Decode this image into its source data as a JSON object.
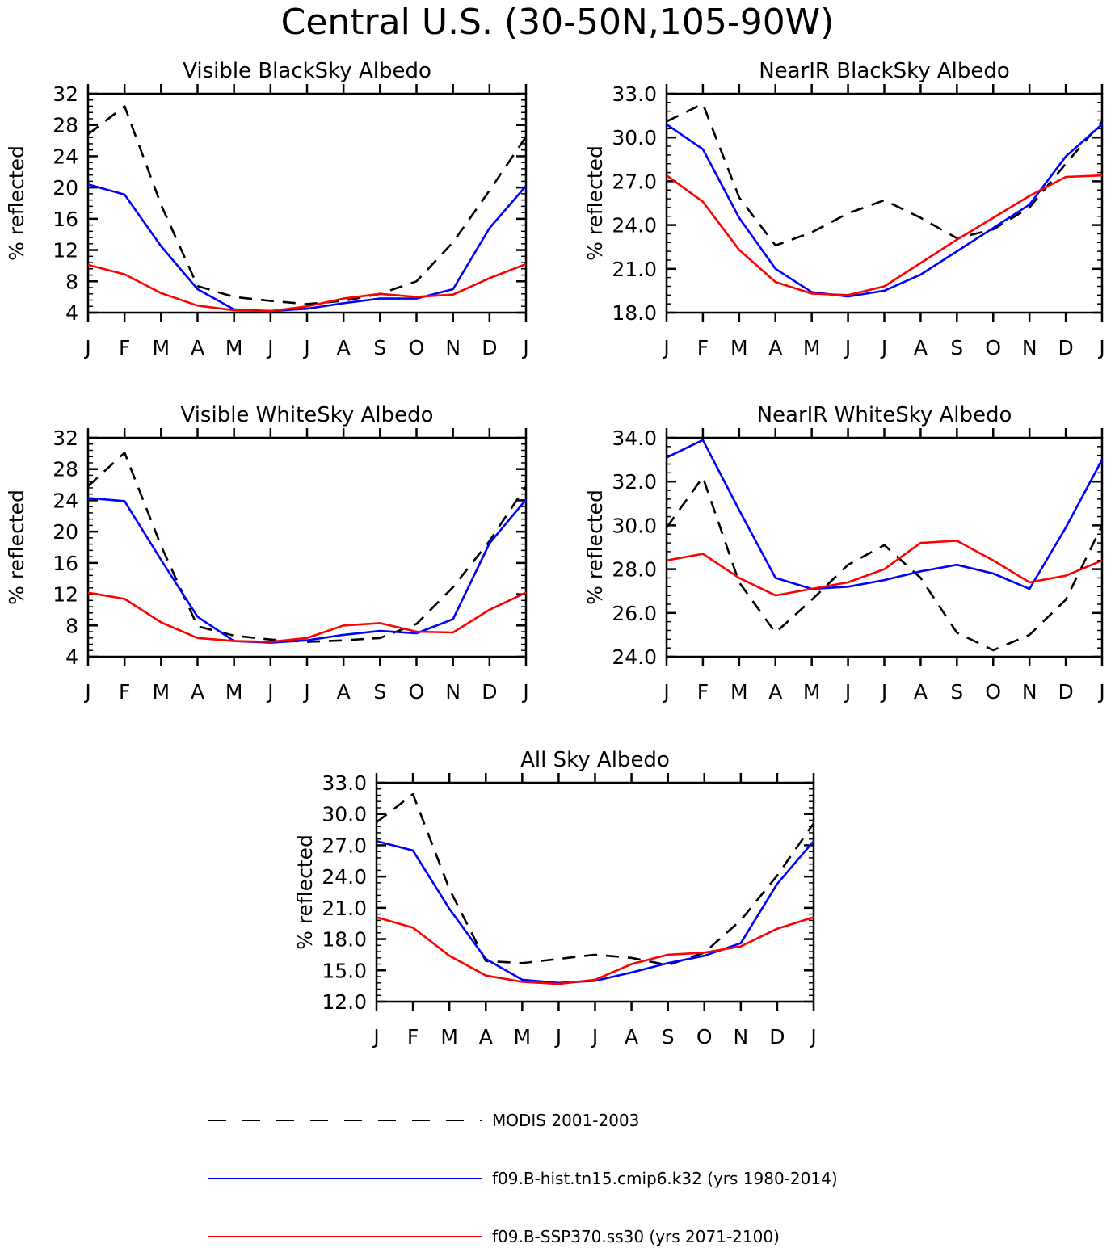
{
  "figure_title": "Central U.S. (30-50N,105-90W)",
  "colors": {
    "modis": "#000000",
    "hist": "#0000ff",
    "ssp": "#ff0000"
  },
  "legend": [
    {
      "label": "MODIS 2001-2003",
      "color": "#000000",
      "dash": true
    },
    {
      "label": "f09.B-hist.tn15.cmip6.k32 (yrs 1980-2014)",
      "color": "#0000ff",
      "dash": false
    },
    {
      "label": "f09.B-SSP370.ss30 (yrs 2071-2100)",
      "color": "#ff0000",
      "dash": false
    }
  ],
  "chart_data": [
    {
      "type": "line",
      "title": "Visible BlackSky Albedo",
      "ylabel": "% reflected",
      "categories": [
        "J",
        "F",
        "M",
        "A",
        "M",
        "J",
        "J",
        "A",
        "S",
        "O",
        "N",
        "D",
        "J"
      ],
      "ylim": [
        4,
        32
      ],
      "yticks": [
        "4",
        "8",
        "12",
        "16",
        "20",
        "24",
        "28",
        "32"
      ],
      "series": [
        {
          "name": "MODIS 2001-2003",
          "values": [
            26.8,
            30.4,
            17.8,
            7.4,
            6.0,
            5.5,
            5.1,
            5.5,
            6.4,
            8.0,
            13.0,
            19.6,
            26.5
          ]
        },
        {
          "name": "f09.B-hist.tn15.cmip6.k32 (yrs 1980-2014)",
          "values": [
            20.4,
            19.1,
            12.5,
            7.0,
            4.4,
            4.2,
            4.5,
            5.2,
            5.8,
            5.8,
            7.0,
            14.8,
            20.2
          ]
        },
        {
          "name": "f09.B-SSP370.ss30 (yrs 2071-2100)",
          "values": [
            10.1,
            8.9,
            6.5,
            4.9,
            4.3,
            4.2,
            4.8,
            5.8,
            6.4,
            6.0,
            6.3,
            8.4,
            10.2
          ]
        }
      ]
    },
    {
      "type": "line",
      "title": "NearIR BlackSky Albedo",
      "ylabel": "% reflected",
      "categories": [
        "J",
        "F",
        "M",
        "A",
        "M",
        "J",
        "J",
        "A",
        "S",
        "O",
        "N",
        "D",
        "J"
      ],
      "ylim": [
        18,
        33
      ],
      "yticks": [
        "18.0",
        "21.0",
        "24.0",
        "27.0",
        "30.0",
        "33.0"
      ],
      "series": [
        {
          "name": "MODIS 2001-2003",
          "values": [
            31.1,
            32.3,
            25.9,
            22.6,
            23.5,
            24.8,
            25.7,
            24.5,
            23.1,
            23.7,
            25.2,
            28.2,
            31.1
          ]
        },
        {
          "name": "f09.B-hist.tn15.cmip6.k32 (yrs 1980-2014)",
          "values": [
            30.9,
            29.2,
            24.5,
            21.0,
            19.4,
            19.1,
            19.5,
            20.6,
            22.2,
            23.8,
            25.4,
            28.7,
            30.9
          ]
        },
        {
          "name": "f09.B-SSP370.ss30 (yrs 2071-2100)",
          "values": [
            27.4,
            25.6,
            22.3,
            20.1,
            19.3,
            19.2,
            19.8,
            21.4,
            23.0,
            24.5,
            26.0,
            27.3,
            27.4
          ]
        }
      ]
    },
    {
      "type": "line",
      "title": "Visible WhiteSky Albedo",
      "ylabel": "% reflected",
      "categories": [
        "J",
        "F",
        "M",
        "A",
        "M",
        "J",
        "J",
        "A",
        "S",
        "O",
        "N",
        "D",
        "J"
      ],
      "ylim": [
        4,
        32
      ],
      "yticks": [
        "4",
        "8",
        "12",
        "16",
        "20",
        "24",
        "28",
        "32"
      ],
      "series": [
        {
          "name": "MODIS 2001-2003",
          "values": [
            25.8,
            30.1,
            18.2,
            7.9,
            6.7,
            6.2,
            5.9,
            6.1,
            6.4,
            8.2,
            12.9,
            18.8,
            25.8
          ]
        },
        {
          "name": "f09.B-hist.tn15.cmip6.k32 (yrs 1980-2014)",
          "values": [
            24.3,
            23.9,
            16.4,
            9.1,
            6.0,
            5.8,
            6.1,
            6.8,
            7.3,
            7.0,
            8.8,
            18.5,
            24.1
          ]
        },
        {
          "name": "f09.B-SSP370.ss30 (yrs 2071-2100)",
          "values": [
            12.2,
            11.4,
            8.4,
            6.4,
            6.0,
            5.9,
            6.4,
            8.0,
            8.3,
            7.2,
            7.1,
            10.0,
            12.2
          ]
        }
      ]
    },
    {
      "type": "line",
      "title": "NearIR WhiteSky Albedo",
      "ylabel": "% reflected",
      "categories": [
        "J",
        "F",
        "M",
        "A",
        "M",
        "J",
        "J",
        "A",
        "S",
        "O",
        "N",
        "D",
        "J"
      ],
      "ylim": [
        24,
        34
      ],
      "yticks": [
        "24.0",
        "26.0",
        "28.0",
        "30.0",
        "32.0",
        "34.0"
      ],
      "series": [
        {
          "name": "MODIS 2001-2003",
          "values": [
            29.9,
            32.2,
            27.4,
            25.1,
            26.6,
            28.2,
            29.1,
            27.6,
            25.1,
            24.3,
            25.0,
            26.6,
            30.0
          ]
        },
        {
          "name": "f09.B-hist.tn15.cmip6.k32 (yrs 1980-2014)",
          "values": [
            33.1,
            33.9,
            30.7,
            27.6,
            27.1,
            27.2,
            27.5,
            27.9,
            28.2,
            27.8,
            27.1,
            29.9,
            33.0
          ]
        },
        {
          "name": "f09.B-SSP370.ss30 (yrs 2071-2100)",
          "values": [
            28.4,
            28.7,
            27.6,
            26.8,
            27.1,
            27.4,
            28.0,
            29.2,
            29.3,
            28.4,
            27.4,
            27.7,
            28.4
          ]
        }
      ]
    },
    {
      "type": "line",
      "title": "All Sky Albedo",
      "ylabel": "% reflected",
      "categories": [
        "J",
        "F",
        "M",
        "A",
        "M",
        "J",
        "J",
        "A",
        "S",
        "O",
        "N",
        "D",
        "J"
      ],
      "ylim": [
        12,
        33
      ],
      "yticks": [
        "12.0",
        "15.0",
        "18.0",
        "21.0",
        "24.0",
        "27.0",
        "30.0",
        "33.0"
      ],
      "series": [
        {
          "name": "MODIS 2001-2003",
          "values": [
            29.2,
            31.9,
            22.8,
            15.9,
            15.7,
            16.1,
            16.5,
            16.2,
            15.5,
            16.7,
            19.8,
            24.1,
            29.1
          ]
        },
        {
          "name": "f09.B-hist.tn15.cmip6.k32 (yrs 1980-2014)",
          "values": [
            27.4,
            26.5,
            20.9,
            16.1,
            14.1,
            13.8,
            14.0,
            14.8,
            15.7,
            16.4,
            17.6,
            23.3,
            27.4
          ]
        },
        {
          "name": "f09.B-SSP370.ss30 (yrs 2071-2100)",
          "values": [
            20.1,
            19.1,
            16.4,
            14.5,
            13.9,
            13.7,
            14.1,
            15.6,
            16.5,
            16.7,
            17.3,
            19.0,
            20.1
          ]
        }
      ]
    }
  ]
}
